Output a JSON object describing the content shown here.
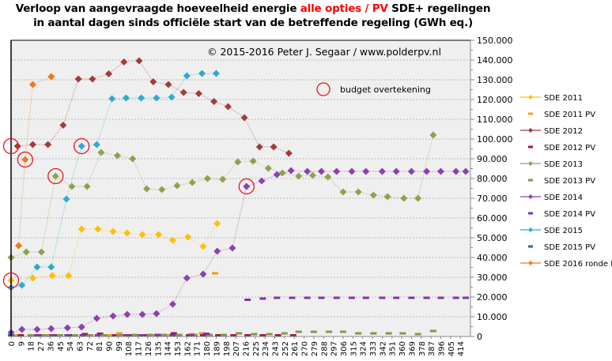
{
  "title": {
    "line1_part1": "Verloop van aangevraagde hoeveelheid energie ",
    "line1_highlight": "alle opties / PV",
    "line1_part2": " SDE+ regelingen",
    "line2": "in aantal dagen sinds officiële start van de betreffende regeling (GWh eq.)"
  },
  "colors": {
    "highlight": "#ff0000",
    "plot_bg": "#efefef",
    "gridline": "#bbbbbb",
    "circle": "#e8141c"
  },
  "chart_data": {
    "type": "line",
    "title": "Verloop van aangevraagde hoeveelheid energie alle opties / PV SDE+ regelingen in aantal dagen sinds officiële start van de betreffende regeling (GWh eq.)",
    "xlabel": "",
    "ylabel": "",
    "xlim": [
      0,
      419
    ],
    "ylim": [
      0,
      150000
    ],
    "grid": true,
    "legend_position": "right",
    "x_ticks": [
      "0",
      "9",
      "18",
      "27",
      "36",
      "45",
      "54",
      "63",
      "72",
      "81",
      "90",
      "99",
      "108",
      "117",
      "126",
      "135",
      "144",
      "153",
      "162",
      "171",
      "180",
      "189",
      "198",
      "207",
      "216",
      "225",
      "234",
      "243",
      "252",
      "261",
      "270",
      "279",
      "288",
      "297",
      "306",
      "315",
      "324",
      "333",
      "342",
      "351",
      "360",
      "369",
      "378",
      "387",
      "396",
      "405",
      "414"
    ],
    "y_ticks": [
      "0",
      "10.000",
      "20.000",
      "30.000",
      "40.000",
      "50.000",
      "60.000",
      "70.000",
      "80.000",
      "90.000",
      "100.000",
      "110.000",
      "120.000",
      "130.000",
      "140.000",
      "150.000"
    ],
    "y_tick_values": [
      0,
      10000,
      20000,
      30000,
      40000,
      50000,
      60000,
      70000,
      80000,
      90000,
      100000,
      110000,
      120000,
      130000,
      140000,
      150000
    ],
    "annotations": [
      {
        "text": "© 2015-2016  Peter J. Segaar / www.polderpv.nl"
      },
      {
        "text": "budget overtekening"
      }
    ],
    "budget_circles": [
      {
        "series": "SDE 2012",
        "x": 0,
        "y": 96400
      },
      {
        "series": "SDE 2011",
        "x": 0,
        "y": 28400
      },
      {
        "series": "SDE 2016 ronde I",
        "x": 13,
        "y": 89600
      },
      {
        "series": "SDE 2013",
        "x": 41,
        "y": 81200
      },
      {
        "series": "SDE 2015",
        "x": 65,
        "y": 96400
      },
      {
        "series": "SDE 2014",
        "x": 217,
        "y": 76000
      }
    ],
    "series": [
      {
        "name": "SDE 2011",
        "color": "#ffc000",
        "style": "line",
        "x": [
          0,
          20,
          38,
          53,
          65,
          80,
          94,
          107,
          121,
          136,
          149,
          163,
          177,
          190
        ],
        "y": [
          28400,
          29600,
          30800,
          30800,
          54400,
          54400,
          53200,
          52400,
          51600,
          51600,
          48800,
          50400,
          45600,
          57200
        ]
      },
      {
        "name": "SDE 2011 PV",
        "color": "#f59b14",
        "style": "dash",
        "x": [
          5,
          33,
          55,
          68,
          91,
          100,
          118,
          130,
          145,
          166,
          176,
          188
        ],
        "y": [
          200,
          400,
          600,
          400,
          200,
          1600,
          400,
          400,
          600,
          1200,
          1600,
          32000
        ]
      },
      {
        "name": "SDE 2012",
        "color": "#a33b3b",
        "style": "line",
        "x": [
          6,
          20,
          34,
          48,
          62,
          75,
          90,
          104,
          118,
          131,
          145,
          159,
          173,
          187,
          200,
          215,
          229,
          242,
          256
        ],
        "y": [
          96400,
          97200,
          97200,
          107000,
          130400,
          130400,
          133000,
          139000,
          139600,
          129000,
          127600,
          123600,
          123000,
          119000,
          116400,
          110800,
          96000,
          96000,
          92800
        ]
      },
      {
        "name": "SDE 2012 PV",
        "color": "#9b1b40",
        "style": "dash",
        "x": [
          9,
          26,
          40,
          54,
          68,
          82,
          96,
          109,
          123,
          137,
          150,
          164,
          177,
          191,
          205,
          218,
          232,
          246,
          260
        ],
        "y": [
          600,
          600,
          600,
          600,
          1200,
          1400,
          600,
          600,
          600,
          600,
          1600,
          600,
          600,
          600,
          600,
          600,
          600,
          600,
          600
        ]
      },
      {
        "name": "SDE 2013",
        "color": "#8aa54a",
        "style": "line",
        "x": [
          0,
          14,
          28,
          41,
          56,
          70,
          83,
          98,
          112,
          125,
          139,
          153,
          167,
          181,
          195,
          209,
          223,
          237,
          250,
          265,
          278,
          292,
          306,
          320,
          334,
          347,
          362,
          375,
          389
        ],
        "y": [
          40000,
          42800,
          42800,
          81200,
          76000,
          76000,
          93200,
          91600,
          90000,
          74800,
          74400,
          76400,
          78000,
          80000,
          79600,
          88400,
          88800,
          85200,
          82800,
          81200,
          81600,
          80800,
          73200,
          73200,
          71600,
          70800,
          70000,
          70000,
          102000
        ]
      },
      {
        "name": "SDE 2013 PV",
        "color": "#7f9a45",
        "style": "dash",
        "x": [
          18,
          31,
          45,
          59,
          73,
          86,
          100,
          114,
          128,
          141,
          155,
          169,
          183,
          196,
          210,
          224,
          238,
          252,
          265,
          279,
          293,
          306,
          320,
          334,
          348,
          361,
          375,
          389
        ],
        "y": [
          400,
          400,
          400,
          600,
          600,
          600,
          600,
          800,
          800,
          800,
          800,
          800,
          800,
          800,
          1600,
          1200,
          1200,
          1600,
          2400,
          2400,
          2400,
          2400,
          1600,
          1600,
          1600,
          1600,
          1200,
          2800
        ]
      },
      {
        "name": "SDE 2014",
        "color": "#8e3fb0",
        "style": "line",
        "x": [
          0,
          10,
          24,
          37,
          52,
          65,
          79,
          94,
          107,
          121,
          134,
          149,
          162,
          177,
          190,
          204,
          217,
          231,
          245,
          258,
          273,
          286,
          300,
          314,
          327,
          342,
          355,
          369,
          383,
          396,
          410,
          419
        ],
        "y": [
          2000,
          3600,
          3600,
          4000,
          4400,
          4800,
          9200,
          10400,
          11200,
          11200,
          11600,
          16400,
          29600,
          31600,
          43200,
          44800,
          76000,
          78800,
          82000,
          84000,
          83600,
          83600,
          83600,
          83600,
          83600,
          83600,
          83600,
          83600,
          83600,
          83600,
          83600,
          83600
        ]
      },
      {
        "name": "SDE 2014 PV",
        "color": "#7e34a6",
        "style": "dash",
        "x": [
          0,
          24,
          38,
          52,
          66,
          80,
          106,
          120,
          135,
          149,
          166,
          180,
          218,
          232,
          245,
          259,
          273,
          286,
          300,
          314,
          327,
          342,
          355,
          369,
          383,
          396,
          410,
          419
        ],
        "y": [
          0,
          0,
          0,
          0,
          0,
          0,
          0,
          0,
          800,
          800,
          0,
          1400,
          18600,
          19200,
          19600,
          19600,
          19600,
          19600,
          19600,
          19600,
          19600,
          19600,
          19600,
          19600,
          19600,
          19600,
          19600,
          19600
        ]
      },
      {
        "name": "SDE 2015",
        "color": "#2eaad0",
        "style": "line",
        "x": [
          0,
          10,
          24,
          37,
          51,
          65,
          79,
          93,
          106,
          120,
          134,
          148,
          162,
          176,
          189
        ],
        "y": [
          24800,
          26000,
          35200,
          35200,
          69600,
          96400,
          97200,
          120400,
          120800,
          120800,
          120800,
          121200,
          132000,
          133200,
          133200
        ]
      },
      {
        "name": "SDE 2015 PV",
        "color": "#1f6fa8",
        "style": "dash",
        "x": [
          0
        ],
        "y": [
          0
        ]
      },
      {
        "name": "SDE 2016 ronde I",
        "color": "#f07818",
        "style": "line",
        "x": [
          7,
          13,
          20,
          37
        ],
        "y": [
          46000,
          89600,
          127600,
          131600
        ]
      }
    ]
  }
}
